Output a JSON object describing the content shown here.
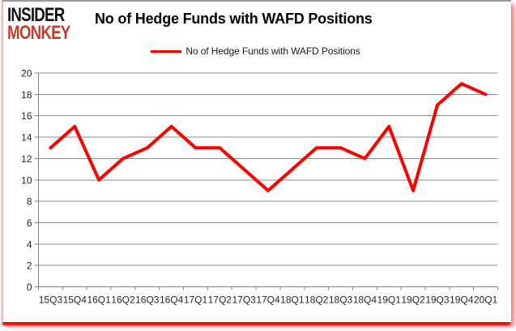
{
  "logo": {
    "line1": "INSIDER",
    "line2": "MONKEY"
  },
  "legend": {
    "swatch": "red-line"
  },
  "chart_data": {
    "type": "line",
    "title": "No of Hedge Funds with WAFD Positions",
    "categories": [
      "15Q3",
      "15Q4",
      "16Q1",
      "16Q2",
      "16Q3",
      "16Q4",
      "17Q1",
      "17Q2",
      "17Q3",
      "17Q4",
      "18Q1",
      "18Q2",
      "18Q3",
      "18Q4",
      "19Q1",
      "19Q2",
      "19Q3",
      "19Q4",
      "20Q1"
    ],
    "series": [
      {
        "name": "No of Hedge Funds with WAFD Positions",
        "color": "#ff0000",
        "values": [
          13,
          15,
          10,
          12,
          13,
          15,
          13,
          13,
          11,
          9,
          11,
          13,
          13,
          12,
          15,
          9,
          17,
          19,
          18
        ]
      }
    ],
    "xlabel": "",
    "ylabel": "",
    "ylim": [
      0,
      20
    ],
    "ytick_step": 2,
    "yticks": [
      0,
      2,
      4,
      6,
      8,
      10,
      12,
      14,
      16,
      18,
      20
    ],
    "grid": "horizontal",
    "legend_position": "top-center"
  },
  "colors": {
    "line": "#ff0000",
    "grid": "#8c8c8c",
    "axis": "#808080",
    "tick_label": "#262626",
    "title": "#000000",
    "logo_black": "#141414",
    "logo_red": "#c83b2b",
    "border_top_gray": "#9a9a9a",
    "border_pink": "#f2b5b5",
    "shadow_red": "#ff0000",
    "background": "#ffffff"
  }
}
